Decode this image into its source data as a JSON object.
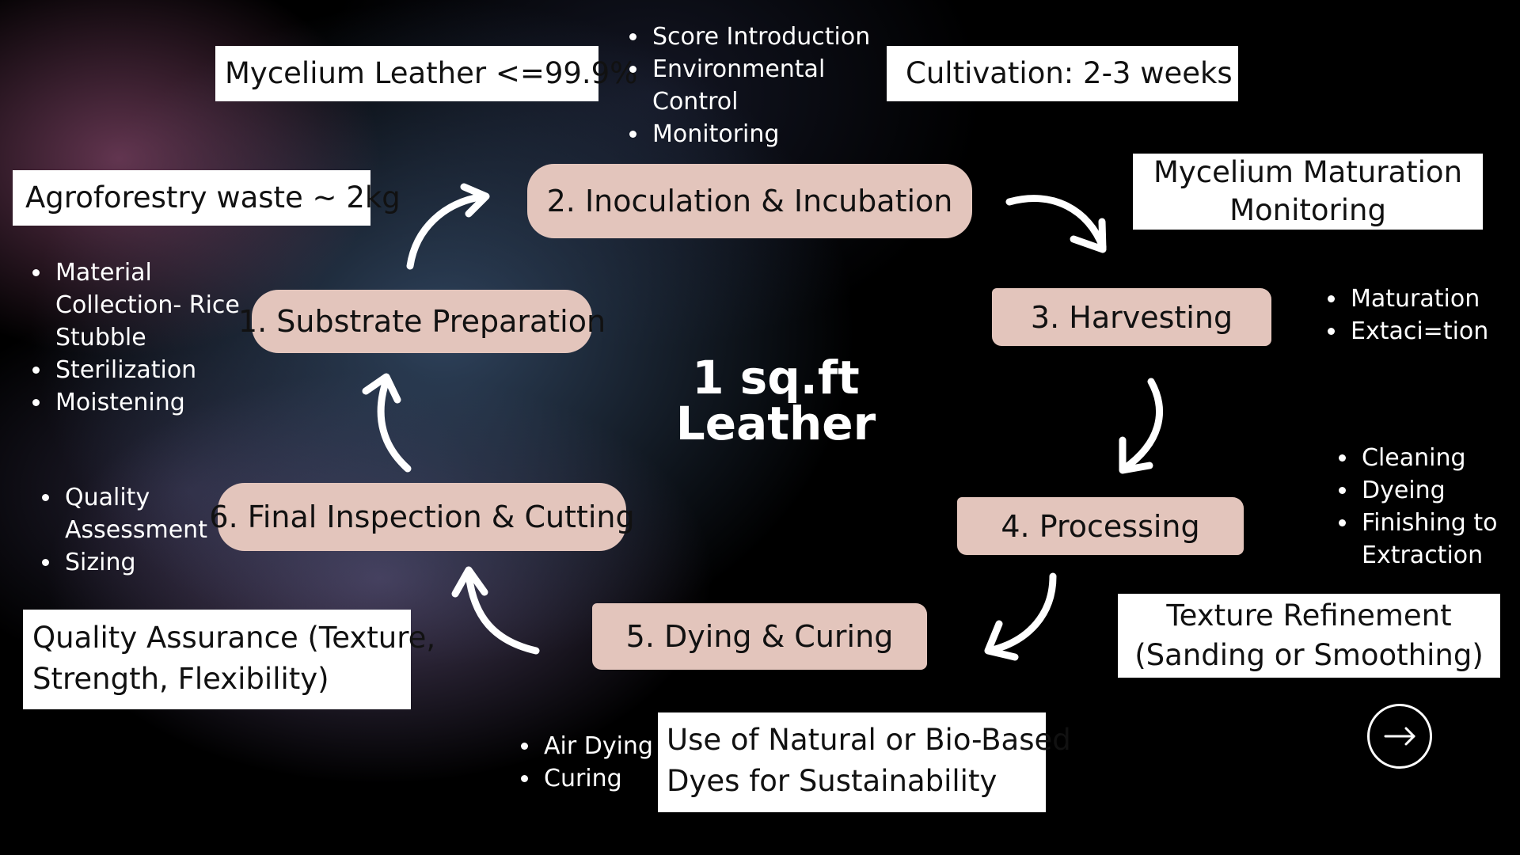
{
  "center_title": {
    "line1": "1 sq.ft",
    "line2": "Leather"
  },
  "steps": [
    {
      "label": "1. Substrate Preparation"
    },
    {
      "label": "2. Inoculation & Incubation"
    },
    {
      "label": "3. Harvesting"
    },
    {
      "label": "4. Processing"
    },
    {
      "label": "5. Dying & Curing"
    },
    {
      "label": "6. Final Inspection & Cutting"
    }
  ],
  "boxes": {
    "mycelium_leather": "Mycelium Leather <=99.9%",
    "cultivation": "Cultivation: 2-3 weeks",
    "agroforestry": "Agroforestry waste ~ 2kg",
    "maturation_line1": "Mycelium Maturation",
    "maturation_line2": "Monitoring",
    "texture_line1": "Texture Refinement",
    "texture_line2": "(Sanding or Smoothing)",
    "quality_line1": "Quality Assurance (Texture,",
    "quality_line2": "Strength, Flexibility)",
    "dyes_line1": "Use of Natural or Bio-Based",
    "dyes_line2": "Dyes for Sustainability"
  },
  "bullets": {
    "inoculation": [
      "Score Introduction",
      "Environmental Control",
      "Monitoring"
    ],
    "substrate": [
      "Material Collection- Rice Stubble",
      "Sterilization",
      "Moistening"
    ],
    "harvesting": [
      "Maturation",
      "Extaci=tion"
    ],
    "processing": [
      "Cleaning",
      "Dyeing",
      "Finishing to Extraction"
    ],
    "inspection": [
      "Quality Assessment",
      "Sizing"
    ],
    "dying": [
      "Air Dying",
      "Curing"
    ]
  },
  "icons": {
    "next": "arrow-right-circle-icon",
    "flow": "curved-arrow-icon"
  },
  "colors": {
    "background": "#000000",
    "step_fill": "#e3c5bc",
    "box_fill": "#ffffff",
    "text_light": "#ffffff",
    "text_dark": "#111111"
  }
}
